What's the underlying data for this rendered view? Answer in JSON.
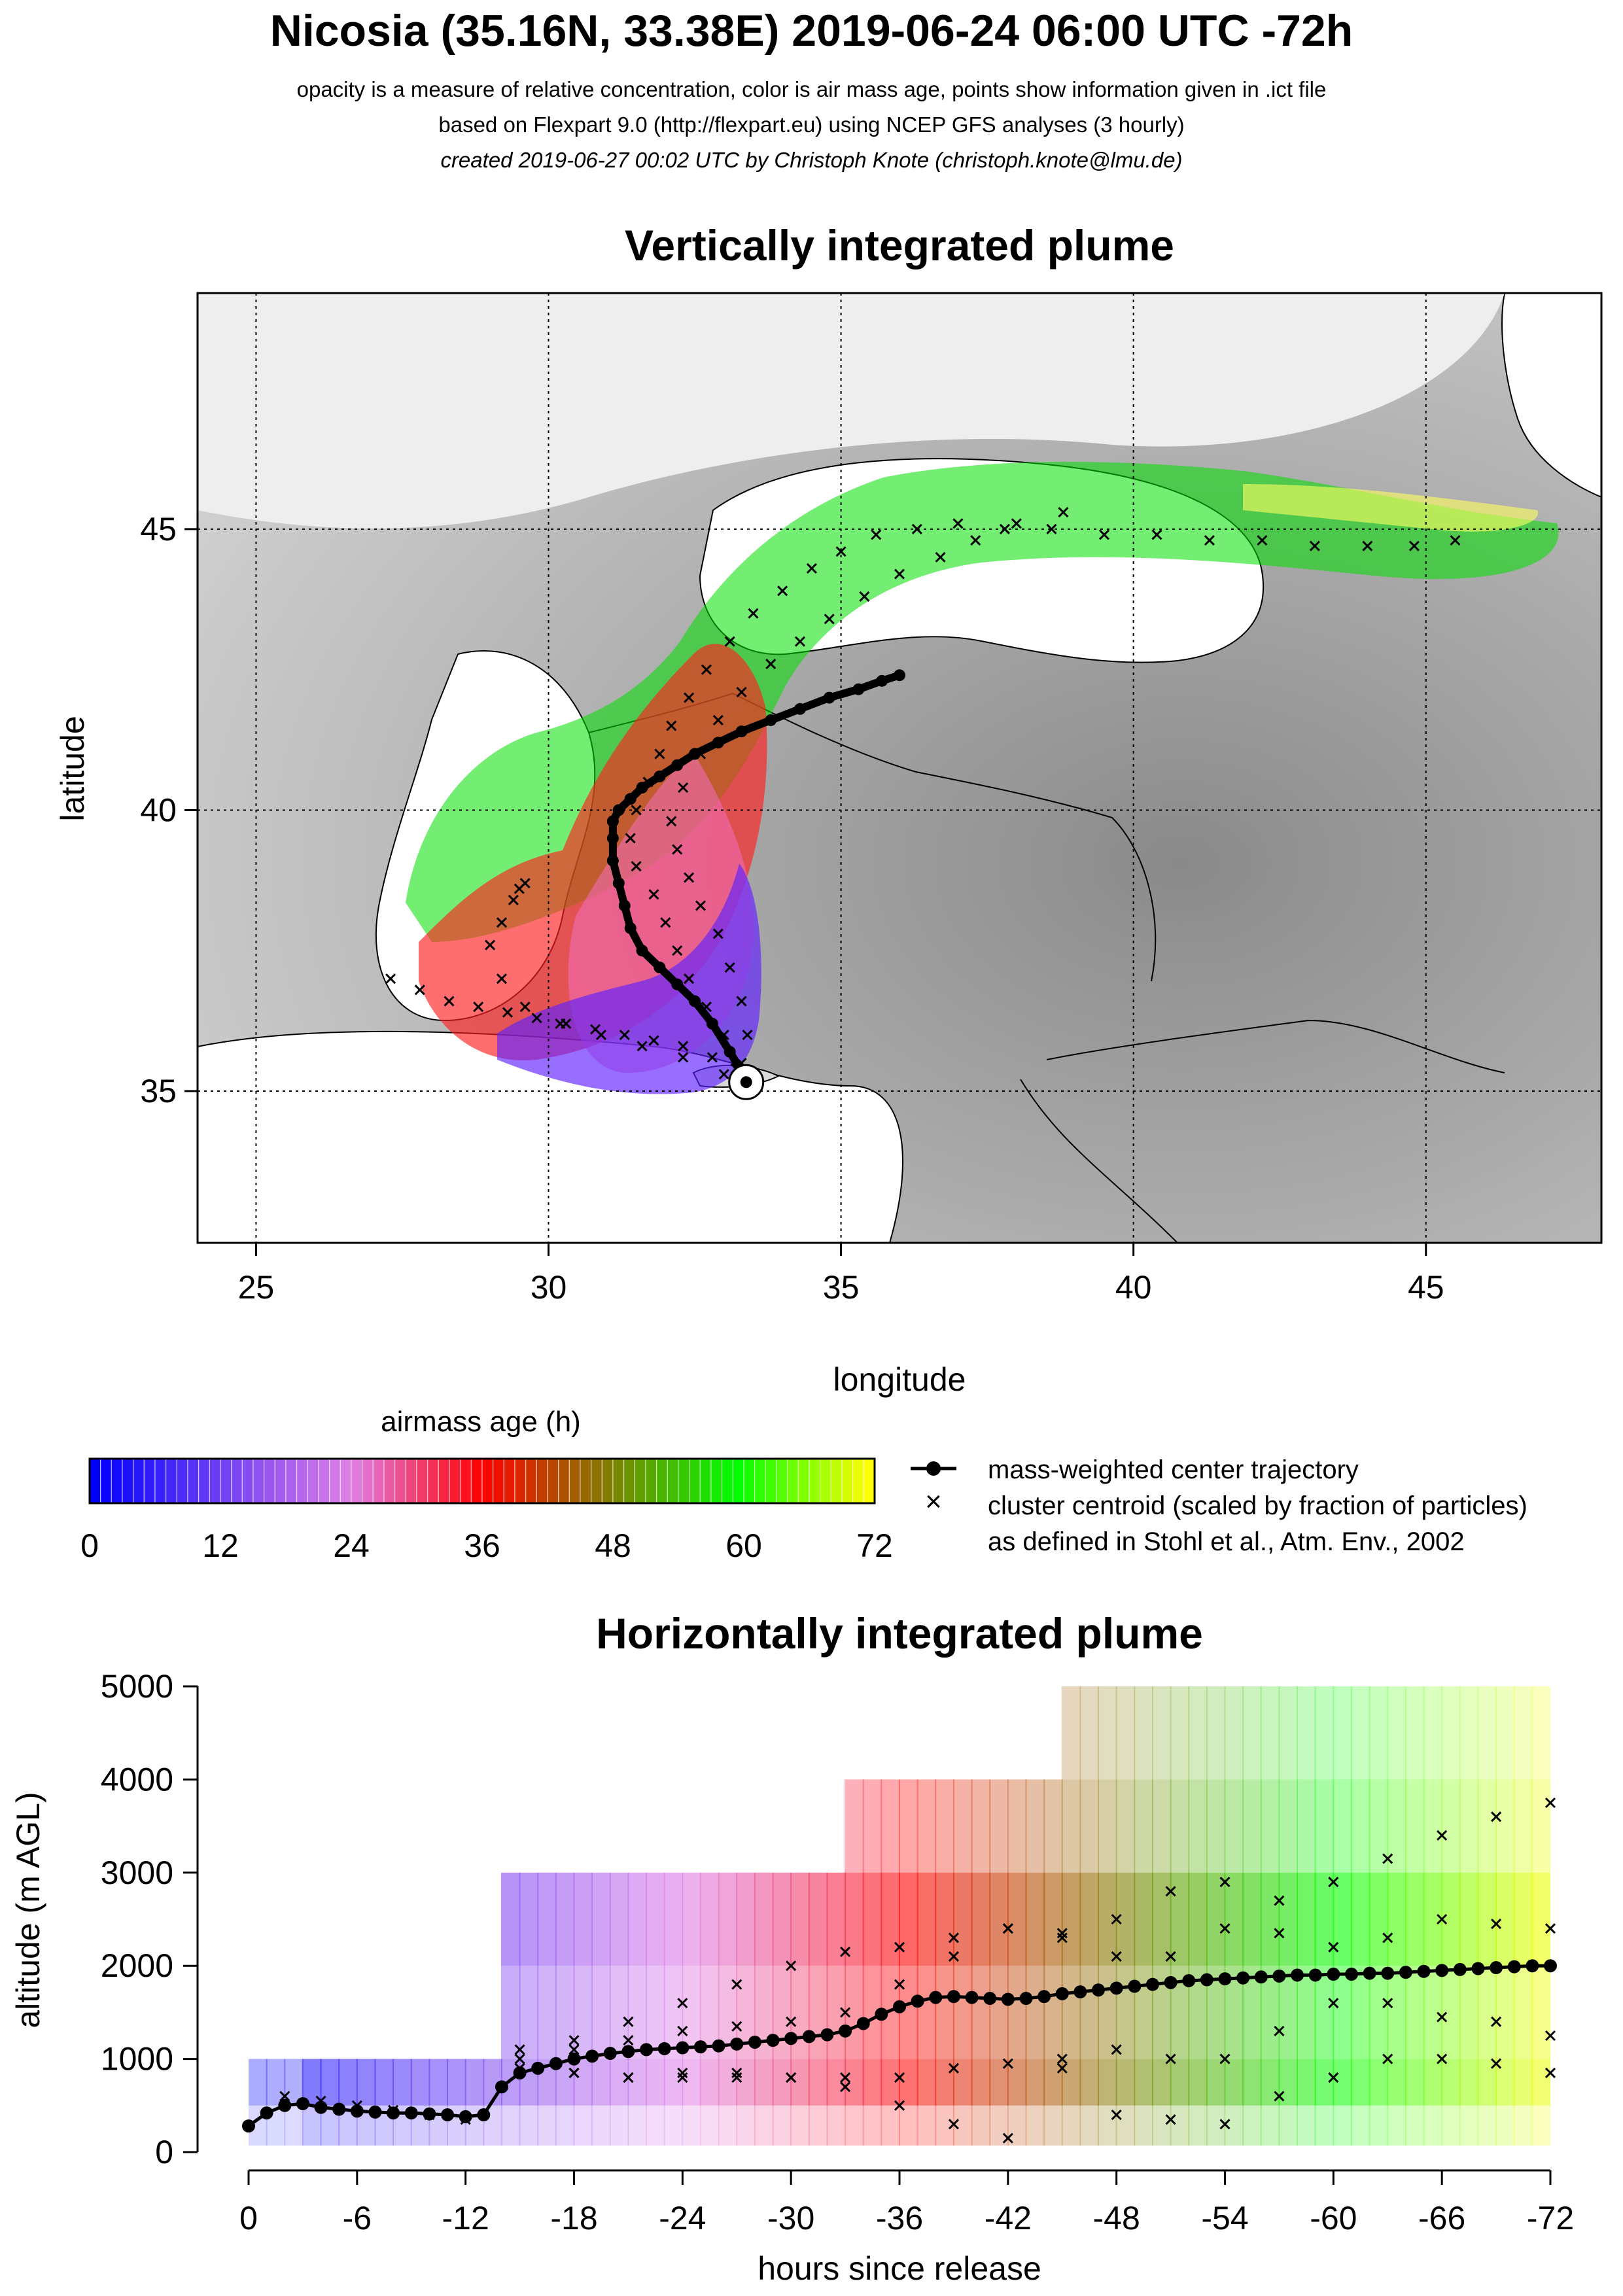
{
  "header": {
    "title": "Nicosia (35.16N, 33.38E) 2019-06-24 06:00 UTC -72h",
    "subtitle1": "opacity is a measure of relative concentration, color is air mass age, points show information given in .ict file",
    "subtitle2": "based on Flexpart 9.0 (http://flexpart.eu) using NCEP GFS analyses (3 hourly)",
    "subtitle3": "created 2019-06-27 00:02 UTC by Christoph Knote (christoph.knote@lmu.de)"
  },
  "chart_data": [
    {
      "type": "scatter",
      "title": "Vertically integrated plume",
      "xlabel": "longitude",
      "ylabel": "latitude",
      "xlim": [
        24,
        48
      ],
      "ylim": [
        32.3,
        49.2
      ],
      "xticks": [
        25,
        30,
        35,
        40,
        45
      ],
      "yticks": [
        35,
        40,
        45
      ],
      "grid": true,
      "release_point": {
        "lon": 33.38,
        "lat": 35.16
      },
      "series": [
        {
          "name": "mass-weighted center trajectory",
          "x": [
            33.38,
            33.1,
            32.8,
            32.5,
            32.2,
            31.9,
            31.6,
            31.4,
            31.3,
            31.2,
            31.1,
            31.1,
            31.1,
            31.2,
            31.4,
            31.6,
            31.9,
            32.2,
            32.5,
            32.9,
            33.3,
            33.8,
            34.3,
            34.8,
            35.3,
            35.7,
            36.0
          ],
          "y": [
            35.2,
            35.7,
            36.2,
            36.6,
            36.9,
            37.2,
            37.5,
            37.9,
            38.3,
            38.7,
            39.1,
            39.5,
            39.8,
            40.0,
            40.2,
            40.4,
            40.6,
            40.8,
            41.0,
            41.2,
            41.4,
            41.6,
            41.8,
            42.0,
            42.15,
            42.3,
            42.4
          ]
        },
        {
          "name": "cluster centroid (scaled by fraction of particles)",
          "x": [
            33.2,
            32.8,
            32.3,
            31.8,
            31.3,
            30.8,
            30.3,
            29.8,
            29.3,
            28.8,
            28.3,
            27.8,
            27.3,
            33.0,
            32.3,
            31.6,
            30.9,
            30.2,
            29.6,
            29.2,
            29.0,
            29.2,
            29.4,
            29.5,
            29.6,
            33.3,
            33.0,
            32.7,
            32.4,
            32.2,
            32.0,
            31.8,
            31.5,
            31.4,
            31.5,
            31.7,
            31.9,
            32.1,
            32.4,
            32.7,
            33.1,
            33.5,
            34.0,
            34.5,
            35.0,
            35.6,
            36.3,
            37.0,
            37.8,
            38.6,
            39.5,
            40.4,
            41.3,
            42.2,
            43.1,
            44.0,
            44.8,
            45.5,
            33.4,
            33.3,
            33.1,
            32.9,
            32.6,
            32.4,
            32.2,
            32.1,
            32.3,
            32.6,
            32.9,
            33.3,
            33.8,
            34.3,
            34.8,
            35.4,
            36.0,
            36.7,
            37.3,
            38.0,
            38.8
          ],
          "y": [
            35.4,
            35.6,
            35.8,
            35.9,
            36.0,
            36.1,
            36.2,
            36.3,
            36.4,
            36.5,
            36.6,
            36.8,
            37.0,
            35.3,
            35.6,
            35.8,
            36.0,
            36.2,
            36.5,
            37.0,
            37.6,
            38.0,
            38.4,
            38.6,
            38.7,
            35.5,
            36.0,
            36.5,
            37.0,
            37.5,
            38.0,
            38.5,
            39.0,
            39.5,
            40.0,
            40.5,
            41.0,
            41.5,
            42.0,
            42.5,
            43.0,
            43.5,
            43.9,
            44.3,
            44.6,
            44.9,
            45.0,
            45.1,
            45.0,
            45.0,
            44.9,
            44.9,
            44.8,
            44.8,
            44.7,
            44.7,
            44.7,
            44.8,
            36.0,
            36.6,
            37.2,
            37.8,
            38.3,
            38.8,
            39.3,
            39.8,
            40.4,
            41.0,
            41.6,
            42.1,
            42.6,
            43.0,
            43.4,
            43.8,
            44.2,
            44.5,
            44.8,
            45.1,
            45.3
          ]
        }
      ]
    },
    {
      "type": "scatter",
      "title": "Horizontally integrated plume",
      "xlabel": "hours since release",
      "ylabel": "altitude (m AGL)",
      "xlim": [
        0,
        -72
      ],
      "ylim": [
        0,
        5000
      ],
      "xticks": [
        0,
        -6,
        -12,
        -18,
        -24,
        -30,
        -36,
        -42,
        -48,
        -54,
        -60,
        -66,
        -72
      ],
      "yticks": [
        0,
        1000,
        2000,
        3000,
        4000,
        5000
      ],
      "series": [
        {
          "name": "mass-weighted center trajectory",
          "x": [
            0,
            -1,
            -2,
            -3,
            -4,
            -5,
            -6,
            -7,
            -8,
            -9,
            -10,
            -11,
            -12,
            -13,
            -14,
            -15,
            -16,
            -17,
            -18,
            -19,
            -20,
            -21,
            -22,
            -23,
            -24,
            -25,
            -26,
            -27,
            -28,
            -29,
            -30,
            -31,
            -32,
            -33,
            -34,
            -35,
            -36,
            -37,
            -38,
            -39,
            -40,
            -41,
            -42,
            -43,
            -44,
            -45,
            -46,
            -47,
            -48,
            -49,
            -50,
            -51,
            -52,
            -53,
            -54,
            -55,
            -56,
            -57,
            -58,
            -59,
            -60,
            -61,
            -62,
            -63,
            -64,
            -65,
            -66,
            -67,
            -68,
            -69,
            -70,
            -71,
            -72
          ],
          "y": [
            280,
            420,
            500,
            520,
            480,
            460,
            440,
            430,
            420,
            420,
            410,
            400,
            380,
            400,
            700,
            850,
            900,
            950,
            1000,
            1030,
            1060,
            1080,
            1100,
            1110,
            1120,
            1130,
            1140,
            1160,
            1180,
            1200,
            1220,
            1240,
            1260,
            1300,
            1380,
            1480,
            1560,
            1620,
            1660,
            1670,
            1660,
            1650,
            1640,
            1650,
            1670,
            1700,
            1720,
            1740,
            1760,
            1780,
            1800,
            1820,
            1840,
            1850,
            1860,
            1870,
            1880,
            1890,
            1900,
            1900,
            1910,
            1910,
            1920,
            1920,
            1930,
            1940,
            1950,
            1960,
            1970,
            1980,
            1990,
            2000,
            2000
          ]
        },
        {
          "name": "cluster centroid (scaled by fraction of particles)",
          "x": [
            -2,
            -4,
            -6,
            -8,
            -10,
            -12,
            -15,
            -18,
            -21,
            -24,
            -27,
            -30,
            -33,
            -36,
            -39,
            -42,
            -45,
            -48,
            -51,
            -54,
            -57,
            -60,
            -63,
            -66,
            -69,
            -72,
            -15,
            -18,
            -21,
            -24,
            -27,
            -30,
            -33,
            -36,
            -39,
            -42,
            -45,
            -48,
            -51,
            -54,
            -57,
            -60,
            -63,
            -66,
            -69,
            -72,
            -15,
            -18,
            -21,
            -24,
            -27,
            -30,
            -33,
            -36,
            -39,
            -42,
            -45,
            -48,
            -51,
            -54,
            -57,
            -60,
            -63,
            -66,
            -69,
            -72,
            -15,
            -18,
            -21,
            -24,
            -27,
            -30,
            -33,
            -36,
            -39,
            -42,
            -45,
            -48,
            -51,
            -54,
            -57,
            -60,
            -63,
            -66,
            -69,
            -72
          ],
          "y": [
            600,
            550,
            500,
            450,
            400,
            350,
            1100,
            1200,
            1400,
            1600,
            1800,
            2000,
            2150,
            2200,
            2300,
            2400,
            2350,
            2500,
            2800,
            2900,
            2700,
            2900,
            3150,
            3400,
            3600,
            3750,
            1000,
            1100,
            1200,
            1300,
            1350,
            1400,
            1500,
            1800,
            2100,
            2400,
            2300,
            2100,
            2100,
            2400,
            2350,
            2200,
            2300,
            2500,
            2450,
            2400,
            900,
            850,
            800,
            800,
            800,
            800,
            700,
            500,
            300,
            150,
            1000,
            1100,
            1000,
            1000,
            1300,
            1600,
            1600,
            1450,
            1400,
            1250,
            900,
            850,
            800,
            850,
            850,
            800,
            800,
            800,
            900,
            950,
            900,
            400,
            350,
            300,
            600,
            800,
            1000,
            1000,
            950,
            850
          ]
        }
      ]
    },
    {
      "type": "heatmap",
      "title": "airmass age (h)",
      "ticks": [
        0,
        12,
        24,
        36,
        48,
        60,
        72
      ],
      "colors": [
        "#0000ff",
        "#e080e8",
        "#ff0000",
        "#00ff00",
        "#ffff00"
      ]
    }
  ],
  "legend": {
    "items": [
      {
        "label": "mass-weighted center trajectory",
        "symbol": "line-dot"
      },
      {
        "label": "cluster centroid (scaled by fraction of particles)",
        "symbol": "cross"
      },
      {
        "label": "as defined in Stohl et al., Atm. Env., 2002",
        "symbol": "none"
      }
    ]
  }
}
